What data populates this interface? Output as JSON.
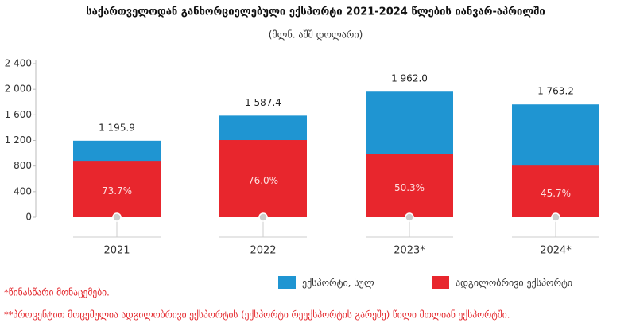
{
  "chart_data": {
    "type": "bar",
    "title": "საქართველოდან განხორციელებული ექსპორტი 2021-2024 წლების იანვარ-აპრილში",
    "subtitle": "(მლნ. აშშ დოლარი)",
    "categories": [
      "2021",
      "2022",
      "2023*",
      "2024*"
    ],
    "series": [
      {
        "name": "ექსპორტი, სულ",
        "color": "#1f95d2",
        "values": [
          1195.9,
          1587.4,
          1962.0,
          1763.2
        ],
        "value_labels": [
          "1 195.9",
          "1 587.4",
          "1 962.0",
          "1 763.2"
        ]
      },
      {
        "name": "ადგილობრივი ექსპორტი",
        "color": "#e8262d",
        "values": [
          881,
          1206,
          987,
          806
        ],
        "share_labels": [
          "73.7%",
          "76.0%",
          "50.3%",
          "45.7%"
        ]
      }
    ],
    "ylim": [
      0,
      2400
    ],
    "yticks": [
      0,
      400,
      800,
      {
        "value": 1200,
        "label": "1 200"
      },
      {
        "value": 1600,
        "label": "1 600"
      },
      {
        "value": 2000,
        "label": "2 000"
      },
      {
        "value": 2400,
        "label": "2 400"
      }
    ],
    "notes": [
      "*წინასწარი მონაცემები.",
      "**პროცენტით მოცემულია ადგილობრივი ექსპორტის (ექსპორტი რეექსპორტის გარეშე) წილი მთლიან ექსპორტში."
    ]
  }
}
